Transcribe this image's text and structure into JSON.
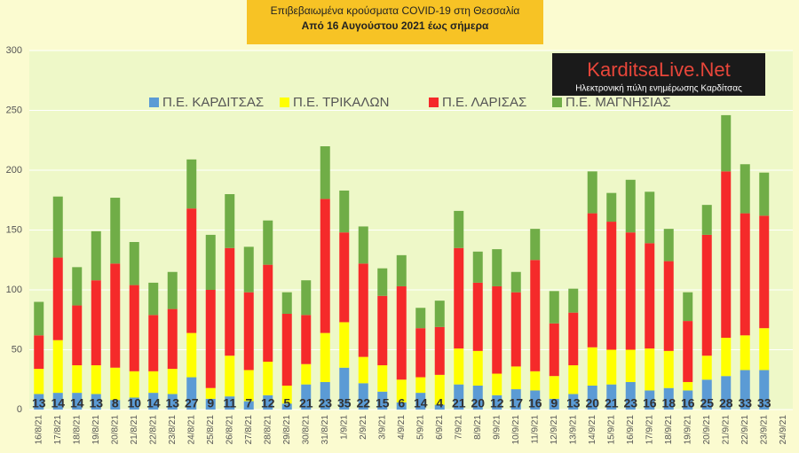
{
  "chart_data": {
    "type": "stacked-bar",
    "title": "Επιβεβαιωμένα κρούσματα COVID-19 στη Θεσσαλία",
    "subtitle": "Από 16 Αυγούστου 2021 έως σήμερα",
    "categories": [
      "16/8/21",
      "17/8/21",
      "18/8/21",
      "19/8/21",
      "20/8/21",
      "21/8/21",
      "22/8/21",
      "23/8/21",
      "24/8/21",
      "25/8/21",
      "26/8/21",
      "27/8/21",
      "28/8/21",
      "29/8/21",
      "30/8/21",
      "31/8/21",
      "1/9/21",
      "2/9/21",
      "3/9/21",
      "4/9/21",
      "5/9/21",
      "6/9/21",
      "7/9/21",
      "8/9/21",
      "9/9/21",
      "10/9/21",
      "11/9/21",
      "12/9/21",
      "13/9/21",
      "14/9/21",
      "15/9/21",
      "16/9/21",
      "17/9/21",
      "18/9/21",
      "19/9/21",
      "20/9/21",
      "21/9/21",
      "22/9/21",
      "23/9/21",
      "24/9/21"
    ],
    "series": [
      {
        "name": "Π.Ε. ΚΑΡΔΙΤΣΑΣ",
        "color": "#5b9bd5",
        "values": [
          13,
          14,
          14,
          13,
          8,
          10,
          14,
          13,
          27,
          9,
          11,
          7,
          12,
          5,
          21,
          23,
          35,
          22,
          15,
          6,
          14,
          4,
          21,
          20,
          12,
          17,
          16,
          9,
          13,
          20,
          21,
          23,
          16,
          18,
          16,
          25,
          28,
          33,
          33,
          null
        ]
      },
      {
        "name": "Π.Ε. ΤΡΙΚΑΛΩΝ",
        "color": "#ffff00",
        "values": [
          21,
          44,
          23,
          24,
          27,
          22,
          18,
          21,
          37,
          9,
          34,
          26,
          28,
          15,
          17,
          41,
          38,
          22,
          22,
          19,
          13,
          25,
          30,
          29,
          18,
          19,
          16,
          19,
          24,
          32,
          29,
          27,
          35,
          31,
          7,
          20,
          32,
          29,
          35,
          null
        ]
      },
      {
        "name": "Π.Ε. ΛΑΡΙΣΑΣ",
        "color": "#f52a2a",
        "values": [
          28,
          69,
          50,
          71,
          87,
          72,
          47,
          50,
          104,
          82,
          90,
          65,
          81,
          60,
          41,
          112,
          75,
          78,
          58,
          78,
          41,
          40,
          84,
          57,
          73,
          62,
          93,
          44,
          44,
          112,
          107,
          98,
          88,
          75,
          51,
          101,
          139,
          102,
          94,
          null
        ]
      },
      {
        "name": "Π.Ε. ΜΑΓΝΗΣΙΑΣ",
        "color": "#70ad47",
        "values": [
          28,
          51,
          32,
          41,
          55,
          36,
          27,
          31,
          41,
          46,
          45,
          38,
          37,
          18,
          29,
          44,
          35,
          31,
          23,
          26,
          17,
          22,
          31,
          26,
          31,
          17,
          26,
          27,
          20,
          35,
          24,
          44,
          43,
          27,
          24,
          25,
          47,
          41,
          36,
          null
        ]
      }
    ],
    "ylim": [
      0,
      300
    ],
    "yticks": [
      0,
      50,
      100,
      150,
      200,
      250,
      300
    ],
    "grid": true,
    "labeled_series": 0
  },
  "logo": {
    "name": "KarditsaLive.Net",
    "tagline": "Ηλεκτρονική πύλη ενημέρωσης Καρδίτσας"
  }
}
